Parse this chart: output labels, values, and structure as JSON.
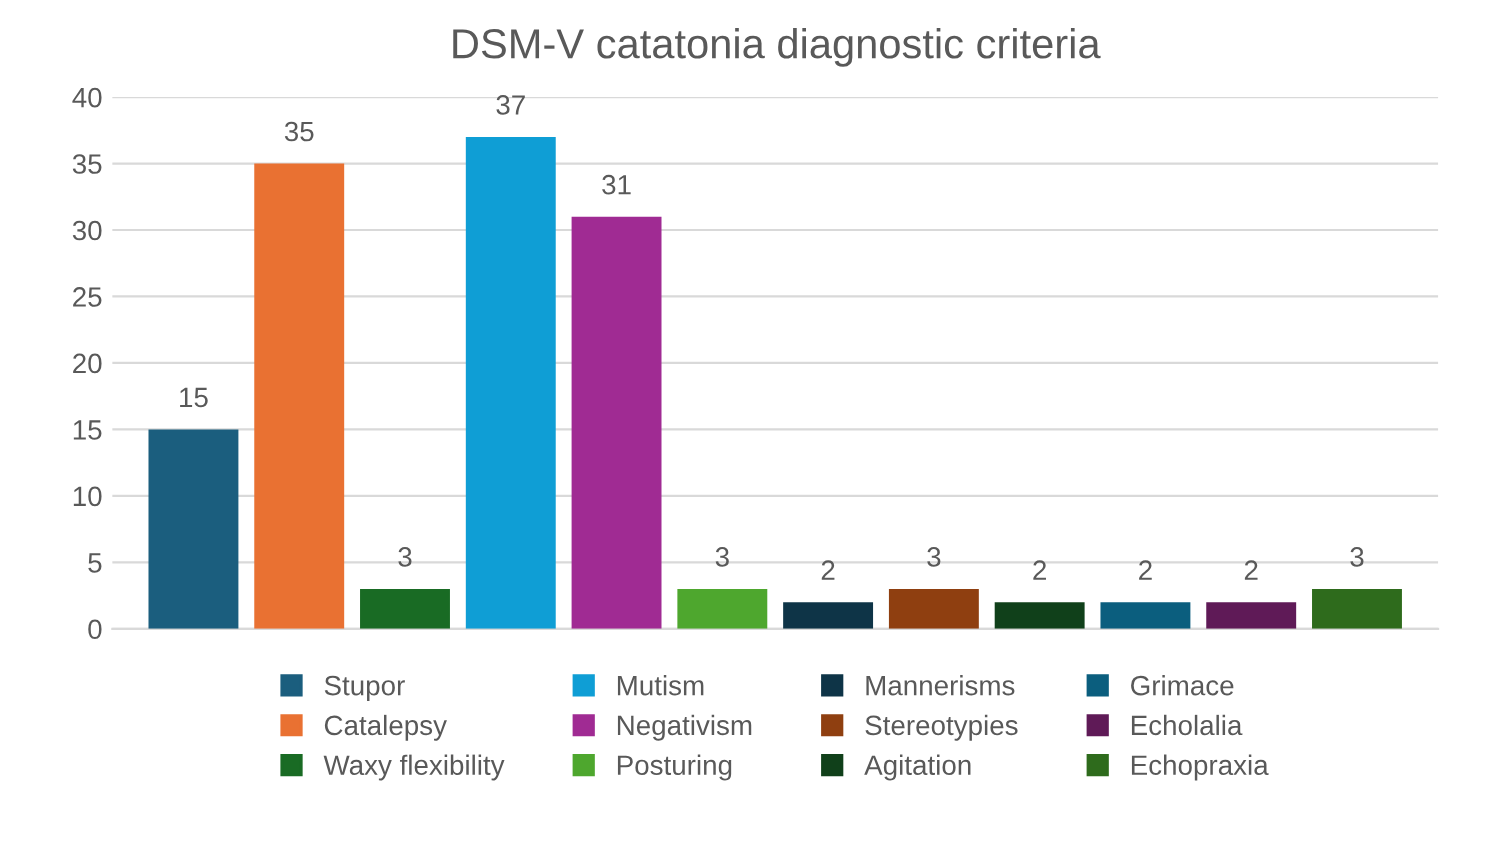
{
  "chart_data": {
    "type": "bar",
    "title": "DSM-V catatonia diagnostic criteria",
    "categories": [
      null
    ],
    "series": [
      {
        "name": "Stupor",
        "color": "#1b5e7e",
        "values": [
          15
        ]
      },
      {
        "name": "Catalepsy",
        "color": "#e97132",
        "values": [
          35
        ]
      },
      {
        "name": "Waxy flexibility",
        "color": "#196b24",
        "values": [
          3
        ]
      },
      {
        "name": "Mutism",
        "color": "#0f9ed5",
        "values": [
          37
        ]
      },
      {
        "name": "Negativism",
        "color": "#a02b93",
        "values": [
          31
        ]
      },
      {
        "name": "Posturing",
        "color": "#4ea72e",
        "values": [
          3
        ]
      },
      {
        "name": "Mannerisms",
        "color": "#0e3447",
        "values": [
          2
        ]
      },
      {
        "name": "Stereotypies",
        "color": "#8f3f10",
        "values": [
          3
        ]
      },
      {
        "name": "Agitation",
        "color": "#10401a",
        "values": [
          2
        ]
      },
      {
        "name": "Grimace",
        "color": "#0b5e7e",
        "values": [
          2
        ]
      },
      {
        "name": "Echolalia",
        "color": "#5f1a57",
        "values": [
          2
        ]
      },
      {
        "name": "Echopraxia",
        "color": "#2e6b1c",
        "values": [
          3
        ]
      }
    ],
    "ylim": [
      0,
      40
    ],
    "yticks": [
      0,
      5,
      10,
      15,
      20,
      25,
      30,
      35,
      40
    ],
    "grid": "y",
    "legend": "bottom",
    "data_labels": true
  }
}
